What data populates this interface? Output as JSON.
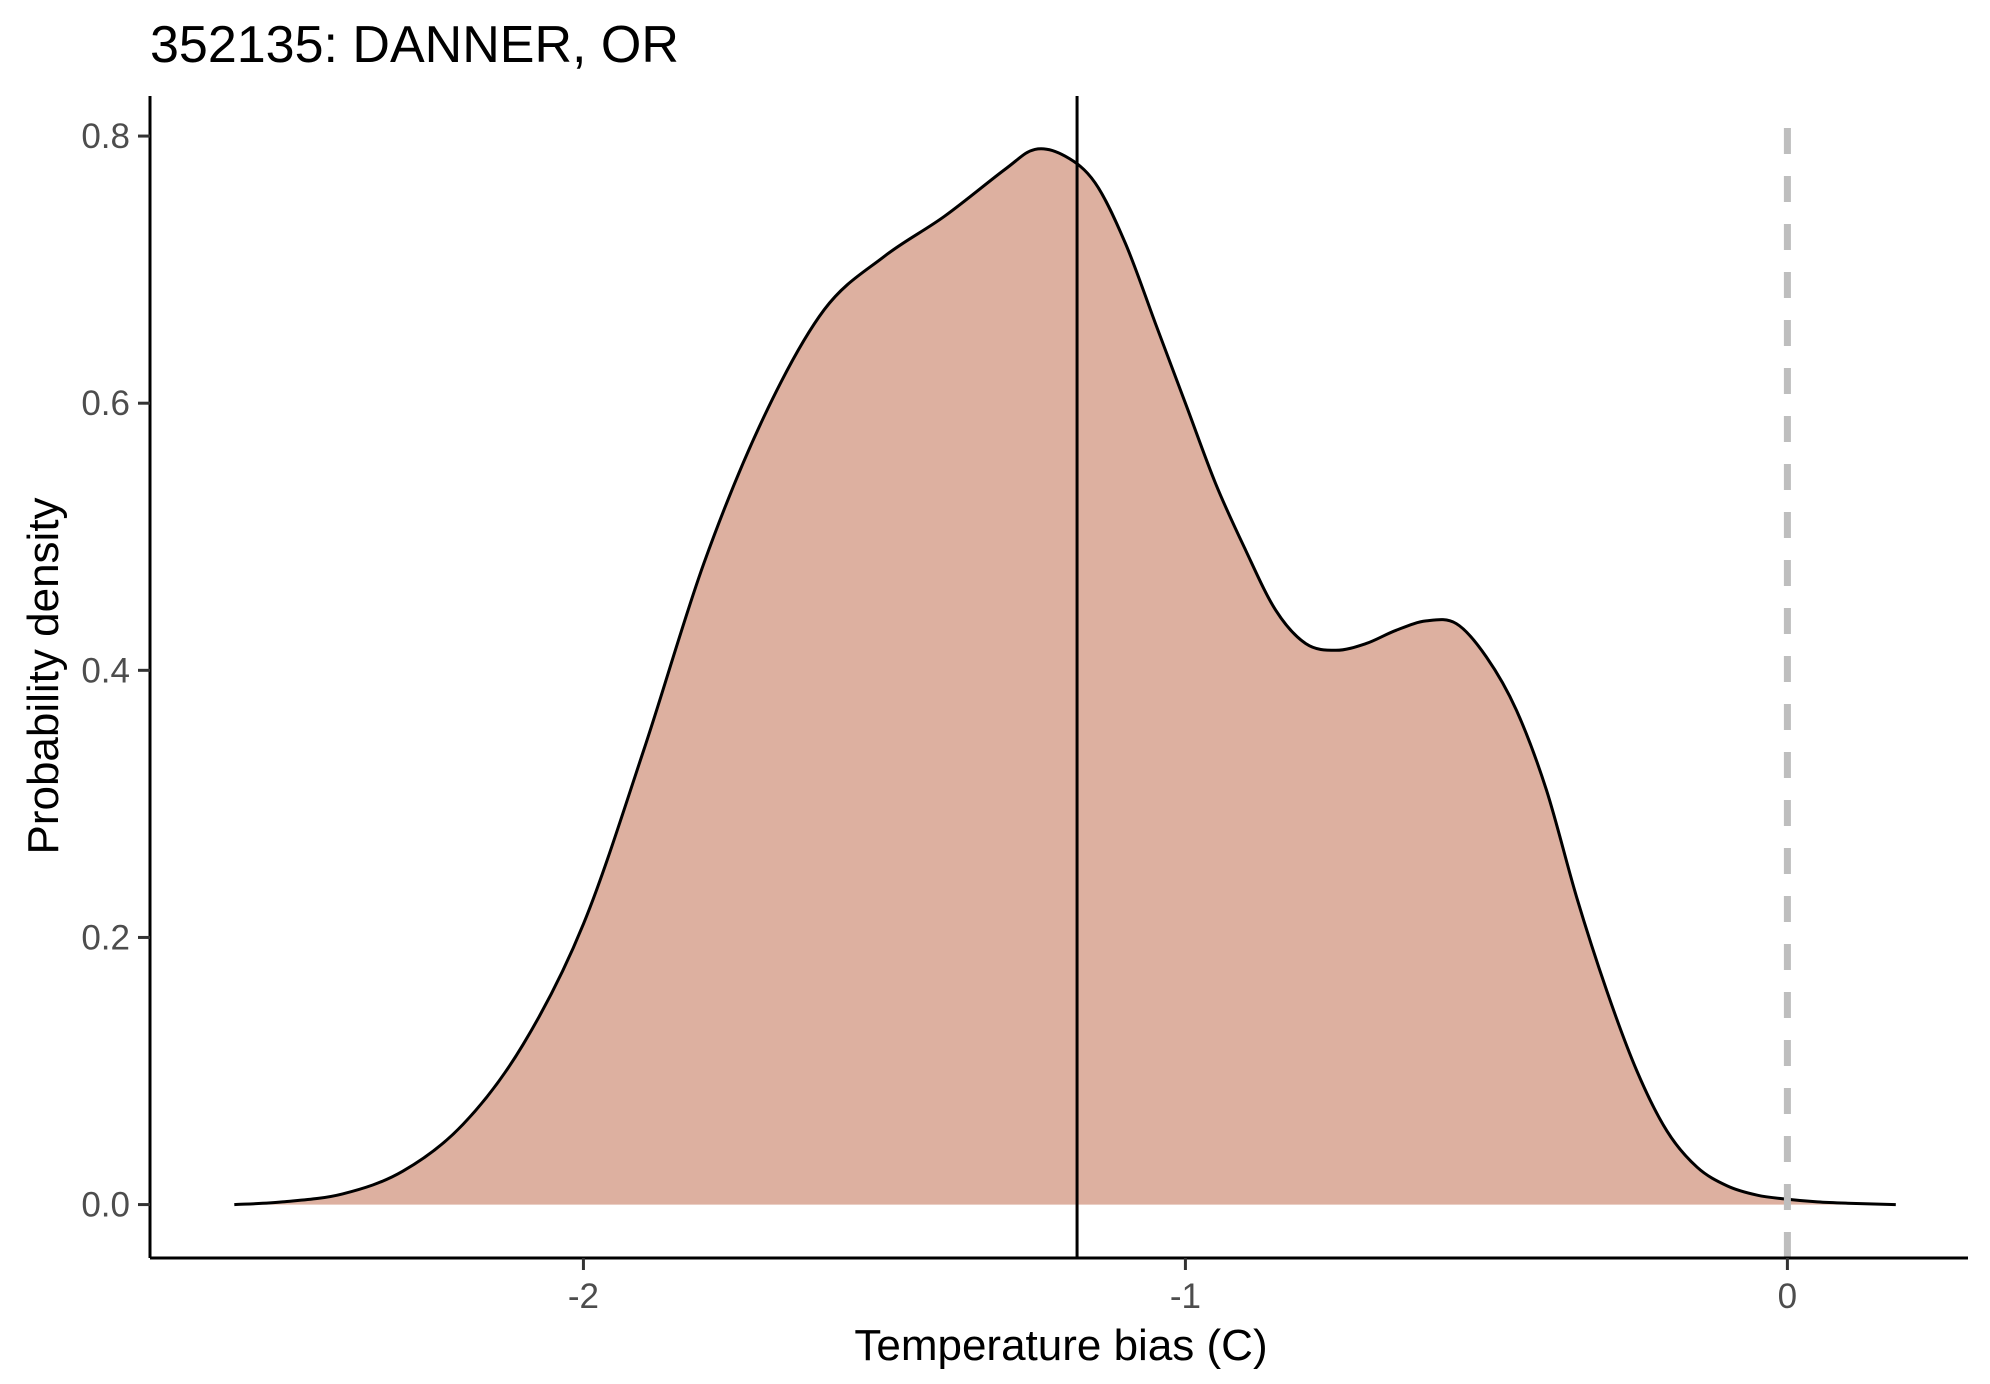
{
  "chart_data": {
    "type": "area",
    "title": "352135: DANNER, OR",
    "xlabel": "Temperature bias (C)",
    "ylabel": "Probability density",
    "xlim": [
      -2.72,
      0.3
    ],
    "ylim": [
      -0.04,
      0.83
    ],
    "x_ticks": [
      -2,
      -1,
      0
    ],
    "x_tick_labels": [
      "-2",
      "-1",
      "0"
    ],
    "y_ticks": [
      0.0,
      0.2,
      0.4,
      0.6,
      0.8
    ],
    "y_tick_labels": [
      "0.0",
      "0.2",
      "0.4",
      "0.6",
      "0.8"
    ],
    "grid": false,
    "fill_color": "#ddb0a0",
    "line_color": "#000000",
    "series": [
      {
        "x": [
          -2.58,
          -2.5,
          -2.4,
          -2.3,
          -2.2,
          -2.1,
          -2.0,
          -1.9,
          -1.8,
          -1.7,
          -1.6,
          -1.5,
          -1.4,
          -1.3,
          -1.25,
          -1.2,
          -1.15,
          -1.1,
          -1.05,
          -1.0,
          -0.95,
          -0.9,
          -0.85,
          -0.8,
          -0.75,
          -0.7,
          -0.65,
          -0.6,
          -0.55,
          -0.5,
          -0.45,
          -0.4,
          -0.35,
          -0.3,
          -0.25,
          -0.2,
          -0.15,
          -0.1,
          -0.05,
          0.0,
          0.05,
          0.1,
          0.18
        ],
        "y": [
          0.0,
          0.002,
          0.008,
          0.025,
          0.06,
          0.12,
          0.21,
          0.34,
          0.48,
          0.59,
          0.67,
          0.71,
          0.74,
          0.775,
          0.79,
          0.785,
          0.765,
          0.72,
          0.66,
          0.6,
          0.54,
          0.49,
          0.445,
          0.42,
          0.415,
          0.42,
          0.43,
          0.437,
          0.435,
          0.41,
          0.37,
          0.31,
          0.23,
          0.16,
          0.1,
          0.055,
          0.028,
          0.014,
          0.007,
          0.004,
          0.002,
          0.001,
          0.0
        ]
      }
    ],
    "reference_lines": [
      {
        "x": -1.18,
        "style": "solid",
        "color": "#000000"
      },
      {
        "x": 0.0,
        "style": "dashed",
        "color": "#bebebe"
      }
    ]
  }
}
